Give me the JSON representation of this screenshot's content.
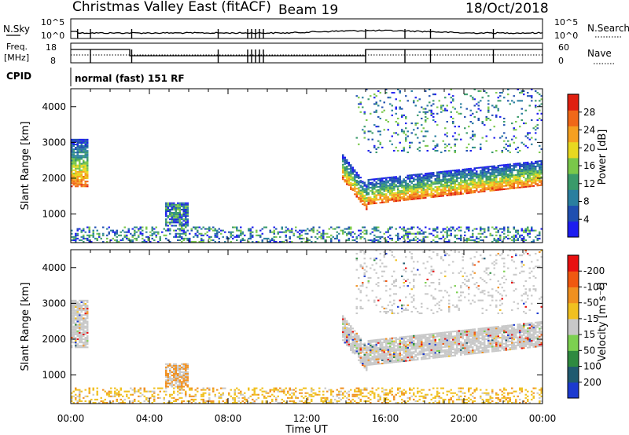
{
  "header": {
    "title": "Christmas Valley East (fitACF)",
    "beam": "Beam 19",
    "date": "18/Oct/2018"
  },
  "nsky_panel": {
    "left_label": "N.Sky",
    "right_label": "N.Search",
    "left_ticks": [
      "10^5",
      "10^0"
    ],
    "right_ticks": [
      "10^5",
      "10^0"
    ],
    "legend_style": "dotted"
  },
  "freq_panel": {
    "left_label_line1": "Freq.",
    "left_label_line2": "[MHz]",
    "right_label": "Nave",
    "left_ticks": [
      "18",
      "8"
    ],
    "right_ticks": [
      "60",
      "0"
    ],
    "legend_style": "dotted"
  },
  "cpid_panel": {
    "label": "CPID",
    "text": "normal (fast) 151 RF"
  },
  "x_axis": {
    "label": "Time UT",
    "ticks": [
      "00:00",
      "04:00",
      "08:00",
      "12:00",
      "16:00",
      "20:00",
      "00:00"
    ],
    "range_hours": [
      0,
      24
    ]
  },
  "chart_data": [
    {
      "type": "heatmap",
      "name": "power",
      "ylabel": "Slant Range [km]",
      "yticks": [
        "1000",
        "2000",
        "3000",
        "4000"
      ],
      "ylim": [
        200,
        4500
      ],
      "colorbar_label": "Power [dB]",
      "colorbar_ticks": [
        "4",
        "8",
        "12",
        "16",
        "20",
        "24",
        "28"
      ],
      "colorbar_range": [
        0,
        32
      ],
      "colors": [
        "#1d1df0",
        "#1f4fb0",
        "#2a7f9f",
        "#3a9a6a",
        "#7ac84a",
        "#e8d820",
        "#f5a020",
        "#f06818",
        "#e02010"
      ],
      "features": [
        {
          "t_start": 0.0,
          "t_end": 0.85,
          "range_low": 1750,
          "range_high": 3100,
          "peak_db": 28
        },
        {
          "t_start": 0.0,
          "t_end": 24.0,
          "range_low": 200,
          "range_high": 650,
          "peak_db": 14
        },
        {
          "t_start": 4.8,
          "t_end": 5.9,
          "range_low": 650,
          "range_high": 1300,
          "peak_db": 22
        },
        {
          "t_start": 13.8,
          "t_end": 24.0,
          "range_low": 1100,
          "range_high": 2600,
          "peak_db": 30
        },
        {
          "t_start": 14.5,
          "t_end": 24.0,
          "range_low": 2700,
          "range_high": 4500,
          "peak_db": 12
        }
      ]
    },
    {
      "type": "heatmap",
      "name": "velocity",
      "ylabel": "Slant Range [km]",
      "yticks": [
        "1000",
        "2000",
        "3000",
        "4000"
      ],
      "ylim": [
        200,
        4500
      ],
      "colorbar_label": "Velocity [m s⁻¹]",
      "colorbar_ticks": [
        "200",
        "100",
        "50",
        "15",
        "-15",
        "-50",
        "-100",
        "-200"
      ],
      "colorbar_range": [
        -250,
        250
      ],
      "colors": [
        "#1c3ad0",
        "#205a70",
        "#2f8a40",
        "#7cd050",
        "#c8c8c8",
        "#f0c020",
        "#f09020",
        "#f05810",
        "#e81010"
      ],
      "features": [
        {
          "t_start": 0.0,
          "t_end": 0.85,
          "range_low": 1750,
          "range_high": 3100,
          "v": 0
        },
        {
          "t_start": 0.0,
          "t_end": 24.0,
          "range_low": 200,
          "range_high": 650,
          "v": -30
        },
        {
          "t_start": 4.8,
          "t_end": 5.9,
          "range_low": 650,
          "range_high": 1300,
          "v": -40
        },
        {
          "t_start": 13.8,
          "t_end": 24.0,
          "range_low": 1100,
          "range_high": 2600,
          "v": 0
        },
        {
          "t_start": 14.5,
          "t_end": 24.0,
          "range_low": 2700,
          "range_high": 4500,
          "v": -20
        }
      ]
    }
  ]
}
